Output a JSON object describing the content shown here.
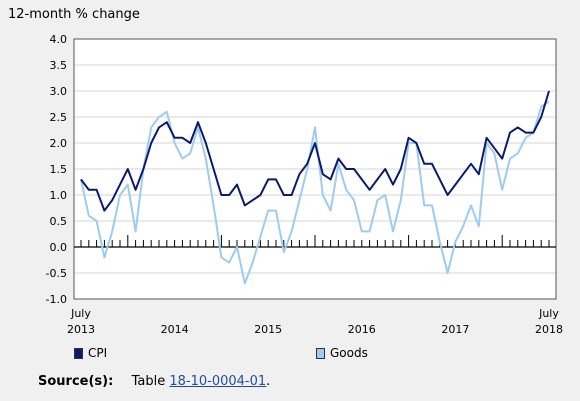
{
  "chart_data": {
    "type": "line",
    "ylabel": "12-month % change",
    "ylim": [
      -1.0,
      4.0
    ],
    "yticks": [
      "4.0",
      "3.5",
      "3.0",
      "2.5",
      "2.0",
      "1.5",
      "1.0",
      "0.5",
      "0.0",
      "-0.5",
      "-1.0"
    ],
    "x_tick_labels": [
      {
        "line1": "July",
        "line2": "2013"
      },
      {
        "line1": "",
        "line2": "2014"
      },
      {
        "line1": "",
        "line2": "2015"
      },
      {
        "line1": "",
        "line2": "2016"
      },
      {
        "line1": "",
        "line2": "2017"
      },
      {
        "line1": "July",
        "line2": "2018"
      }
    ],
    "x": [
      "2013-07",
      "2013-08",
      "2013-09",
      "2013-10",
      "2013-11",
      "2013-12",
      "2014-01",
      "2014-02",
      "2014-03",
      "2014-04",
      "2014-05",
      "2014-06",
      "2014-07",
      "2014-08",
      "2014-09",
      "2014-10",
      "2014-11",
      "2014-12",
      "2015-01",
      "2015-02",
      "2015-03",
      "2015-04",
      "2015-05",
      "2015-06",
      "2015-07",
      "2015-08",
      "2015-09",
      "2015-10",
      "2015-11",
      "2015-12",
      "2016-01",
      "2016-02",
      "2016-03",
      "2016-04",
      "2016-05",
      "2016-06",
      "2016-07",
      "2016-08",
      "2016-09",
      "2016-10",
      "2016-11",
      "2016-12",
      "2017-01",
      "2017-02",
      "2017-03",
      "2017-04",
      "2017-05",
      "2017-06",
      "2017-07",
      "2017-08",
      "2017-09",
      "2017-10",
      "2017-11",
      "2017-12",
      "2018-01",
      "2018-02",
      "2018-03",
      "2018-04",
      "2018-05",
      "2018-06",
      "2018-07"
    ],
    "series": [
      {
        "name": "CPI",
        "color": "#0a1a6e",
        "values": [
          1.3,
          1.1,
          1.1,
          0.7,
          0.9,
          1.2,
          1.5,
          1.1,
          1.5,
          2.0,
          2.3,
          2.4,
          2.1,
          2.1,
          2.0,
          2.4,
          2.0,
          1.5,
          1.0,
          1.0,
          1.2,
          0.8,
          0.9,
          1.0,
          1.3,
          1.3,
          1.0,
          1.0,
          1.4,
          1.6,
          2.0,
          1.4,
          1.3,
          1.7,
          1.5,
          1.5,
          1.3,
          1.1,
          1.3,
          1.5,
          1.2,
          1.5,
          2.1,
          2.0,
          1.6,
          1.6,
          1.3,
          1.0,
          1.2,
          1.4,
          1.6,
          1.4,
          2.1,
          1.9,
          1.7,
          2.2,
          2.3,
          2.2,
          2.2,
          2.5,
          3.0
        ]
      },
      {
        "name": "Goods",
        "color": "#9ecbf0",
        "values": [
          1.3,
          0.6,
          0.5,
          -0.2,
          0.3,
          1.0,
          1.2,
          0.3,
          1.5,
          2.3,
          2.5,
          2.6,
          2.0,
          1.7,
          1.8,
          2.3,
          1.7,
          0.8,
          -0.2,
          -0.3,
          0.0,
          -0.7,
          -0.3,
          0.2,
          0.7,
          0.7,
          -0.1,
          0.3,
          0.9,
          1.5,
          2.3,
          1.0,
          0.7,
          1.6,
          1.1,
          0.9,
          0.3,
          0.3,
          0.9,
          1.0,
          0.3,
          0.9,
          2.0,
          2.0,
          0.8,
          0.8,
          0.1,
          -0.5,
          0.1,
          0.4,
          0.8,
          0.4,
          2.0,
          1.8,
          1.1,
          1.7,
          1.8,
          2.1,
          2.2,
          2.7,
          2.8
        ]
      }
    ]
  },
  "legend": {
    "items": [
      {
        "label": "CPI",
        "color": "#0a1a6e"
      },
      {
        "label": "Goods",
        "color": "#9ecbf0"
      }
    ]
  },
  "source": {
    "label": "Source(s):",
    "prefix": "Table",
    "link": "18-10-0004-01",
    "suffix": "."
  }
}
